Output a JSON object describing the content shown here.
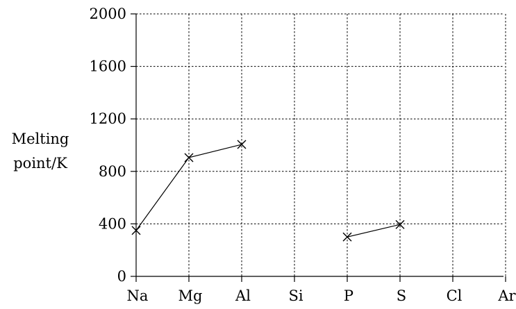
{
  "chart_data": {
    "type": "line",
    "title": "",
    "xlabel": "",
    "ylabel": [
      "Melting",
      "point/K"
    ],
    "categories": [
      "Na",
      "Mg",
      "Al",
      "Si",
      "P",
      "S",
      "Cl",
      "Ar"
    ],
    "ylim": [
      0,
      2000
    ],
    "yticks": [
      0,
      400,
      800,
      1200,
      1600,
      2000
    ],
    "grid": true,
    "series": [
      {
        "segments": [
          [
            {
              "x": "Na",
              "y": 350
            },
            {
              "x": "Mg",
              "y": 905
            },
            {
              "x": "Al",
              "y": 1005
            }
          ],
          [
            {
              "x": "P",
              "y": 300
            },
            {
              "x": "S",
              "y": 395
            }
          ]
        ]
      }
    ],
    "colors": {
      "line": "#000000",
      "grid": "#000000"
    }
  }
}
